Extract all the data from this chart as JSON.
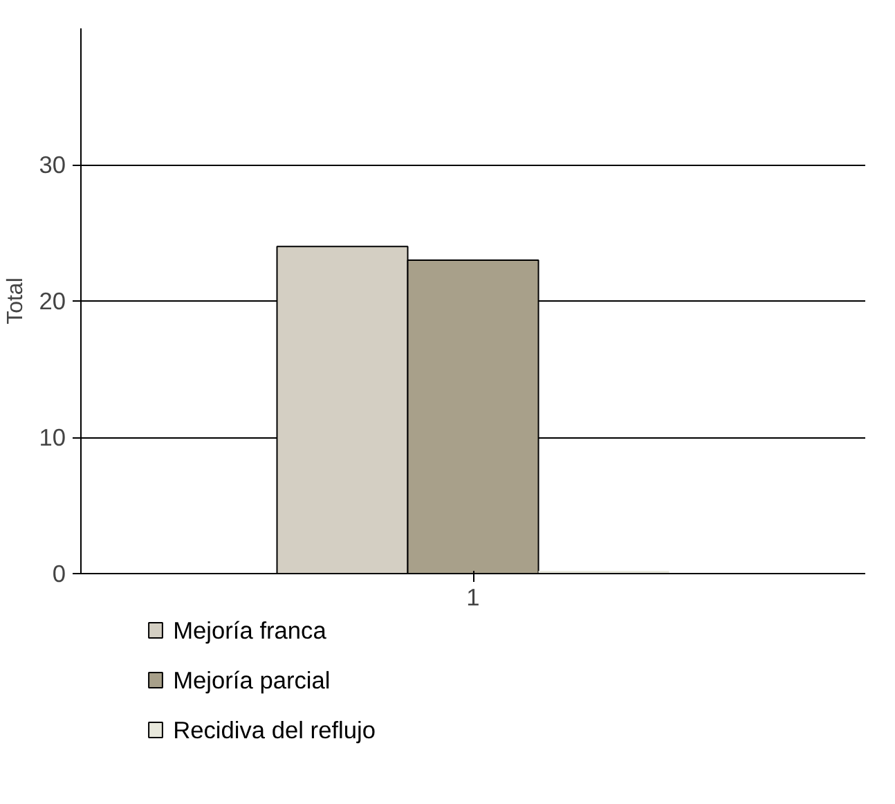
{
  "chart_data": {
    "type": "bar",
    "categories": [
      "1"
    ],
    "ylabel": "Total",
    "series": [
      {
        "name": "Mejoría franca",
        "color": "#d4cfc3",
        "values": [
          24
        ]
      },
      {
        "name": "Mejoría parcial",
        "color": "#a8a08a",
        "values": [
          23
        ]
      },
      {
        "name": "Recidiva del reflujo",
        "color": "#e8e8dc",
        "values": [
          0
        ]
      }
    ],
    "ylim": [
      0,
      40
    ],
    "yticks": [
      0,
      10,
      20,
      30
    ],
    "grid": "y",
    "legend": "bottom"
  }
}
